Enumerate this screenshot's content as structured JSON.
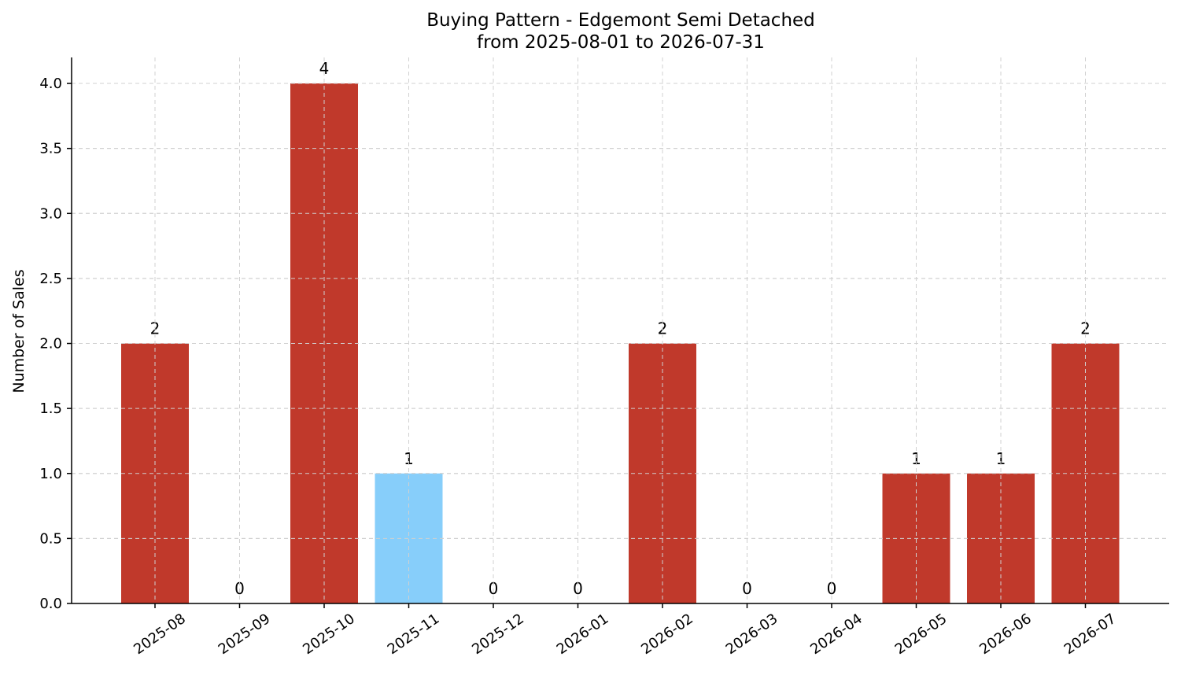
{
  "chart_data": {
    "type": "bar",
    "title": "Buying Pattern - Edgemont Semi Detached",
    "subtitle": "from 2025-08-01 to 2026-07-31",
    "xlabel": "",
    "ylabel": "Number of Sales",
    "categories": [
      "2025-08",
      "2025-09",
      "2025-10",
      "2025-11",
      "2025-12",
      "2026-01",
      "2026-02",
      "2026-03",
      "2026-04",
      "2026-05",
      "2026-06",
      "2026-07"
    ],
    "values": [
      2,
      0,
      4,
      1,
      0,
      0,
      2,
      0,
      0,
      1,
      1,
      2
    ],
    "data_labels": [
      "2",
      "0",
      "4",
      "1",
      "0",
      "0",
      "2",
      "0",
      "0",
      "1",
      "1",
      "2"
    ],
    "bar_colors": [
      "#c0392b",
      "#c0392b",
      "#c0392b",
      "#87cefa",
      "#c0392b",
      "#c0392b",
      "#c0392b",
      "#c0392b",
      "#c0392b",
      "#c0392b",
      "#c0392b",
      "#c0392b"
    ],
    "ylim": [
      0,
      4.2
    ],
    "yticks": [
      "0.0",
      "0.5",
      "1.0",
      "1.5",
      "2.0",
      "2.5",
      "3.0",
      "3.5",
      "4.0"
    ],
    "grid": true,
    "legend": "none"
  }
}
